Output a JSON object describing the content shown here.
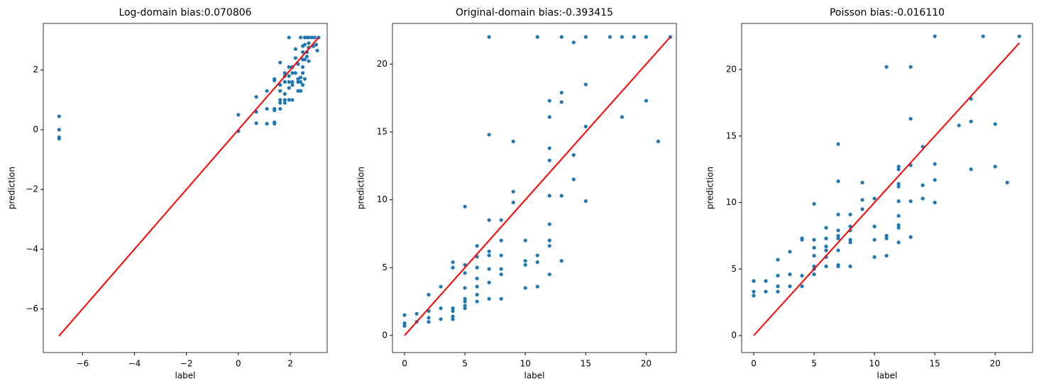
{
  "chart_data": [
    {
      "type": "scatter",
      "title": "Log-domain bias:0.070806",
      "xlabel": "label",
      "ylabel": "prediction",
      "xlim": [
        -7.51,
        3.42
      ],
      "ylim": [
        -7.46,
        3.56
      ],
      "xticks": [
        {
          "value": -6,
          "label": "−6"
        },
        {
          "value": -4,
          "label": "−4"
        },
        {
          "value": -2,
          "label": "−2"
        },
        0,
        2
      ],
      "yticks": [
        {
          "value": -6,
          "label": "−6"
        },
        {
          "value": -4,
          "label": "−4"
        },
        {
          "value": -2,
          "label": "−2"
        },
        0,
        2
      ],
      "series": [
        {
          "kind": "points",
          "color": "#1f77b4",
          "x": [
            -6.9,
            -6.9,
            -6.9,
            -6.9,
            0,
            0,
            0.69,
            0.69,
            0.69,
            1.1,
            1.1,
            1.1,
            1.39,
            1.39,
            1.39,
            1.39,
            1.39,
            1.39,
            1.61,
            1.61,
            1.61,
            1.61,
            1.61,
            1.61,
            1.79,
            1.79,
            1.79,
            1.79,
            1.79,
            1.79,
            1.95,
            1.95,
            1.95,
            1.95,
            1.95,
            1.95,
            2.08,
            2.08,
            2.08,
            2.08,
            2.08,
            2.2,
            2.2,
            2.2,
            2.3,
            2.3,
            2.3,
            2.3,
            2.4,
            2.4,
            2.4,
            2.4,
            2.48,
            2.48,
            2.48,
            2.48,
            2.48,
            2.48,
            2.56,
            2.56,
            2.56,
            2.56,
            2.64,
            2.64,
            2.64,
            2.71,
            2.71,
            2.71,
            2.71,
            2.83,
            2.89,
            2.94,
            3.0,
            3.04,
            3.09
          ],
          "values": [
            0.45,
            0.0,
            -0.25,
            -0.3,
            -0.05,
            0.5,
            0.22,
            0.6,
            1.1,
            0.2,
            0.7,
            1.3,
            0.2,
            0.25,
            0.65,
            0.7,
            1.65,
            1.7,
            0.7,
            0.9,
            1.0,
            1.3,
            1.5,
            2.25,
            0.9,
            1.0,
            1.2,
            1.6,
            1.8,
            1.9,
            1.0,
            1.4,
            1.6,
            1.8,
            2.1,
            3.09,
            1.0,
            1.5,
            1.6,
            1.9,
            2.1,
            1.9,
            2.4,
            2.7,
            1.3,
            1.6,
            1.7,
            2.2,
            1.3,
            1.6,
            1.75,
            3.09,
            1.5,
            1.9,
            2.1,
            2.35,
            2.6,
            2.8,
            1.7,
            2.35,
            2.85,
            3.09,
            2.45,
            2.6,
            3.09,
            2.3,
            2.75,
            2.9,
            3.09,
            3.09,
            2.8,
            3.09,
            2.85,
            2.65,
            3.09
          ]
        },
        {
          "kind": "line",
          "color": "#ff0000",
          "x": [
            -6.91,
            3.09
          ],
          "values": [
            -6.91,
            3.09
          ]
        }
      ]
    },
    {
      "type": "scatter",
      "title": "Original-domain bias:-0.393415",
      "xlabel": "label",
      "ylabel": "prediction",
      "xlim": [
        -1.0,
        22.5
      ],
      "ylim": [
        -1.26,
        23.0
      ],
      "xticks": [
        0,
        5,
        10,
        15,
        20
      ],
      "yticks": [
        0,
        5,
        10,
        15,
        20
      ],
      "series": [
        {
          "kind": "points",
          "color": "#1f77b4",
          "x": [
            0,
            0,
            0,
            1,
            1,
            2,
            2,
            2,
            2,
            3,
            3,
            3,
            4,
            4,
            4,
            4,
            4,
            4,
            5,
            5,
            5,
            5,
            5,
            5,
            5,
            5,
            6,
            6,
            6,
            6,
            6,
            6,
            6,
            7,
            7,
            7,
            7,
            7,
            7,
            7,
            7,
            8,
            8,
            8,
            8,
            8,
            8,
            9,
            9,
            9,
            10,
            10,
            10,
            10,
            11,
            11,
            11,
            11,
            12,
            12,
            12,
            12,
            12,
            12,
            12,
            12,
            12,
            13,
            13,
            13,
            13,
            13,
            14,
            14,
            14,
            15,
            15,
            15,
            15,
            17,
            18,
            18,
            19,
            20,
            20,
            21,
            22
          ],
          "values": [
            0.7,
            0.9,
            1.5,
            1.0,
            1.6,
            1.0,
            1.3,
            1.8,
            3.0,
            1.2,
            2.0,
            3.6,
            1.2,
            1.4,
            1.8,
            2.0,
            5.0,
            5.4,
            2.0,
            2.2,
            2.5,
            2.7,
            3.5,
            4.6,
            5.2,
            9.5,
            2.5,
            3.0,
            3.6,
            4.2,
            5.0,
            5.8,
            6.6,
            2.7,
            3.9,
            4.9,
            5.9,
            6.2,
            8.5,
            14.8,
            22,
            2.7,
            4.5,
            4.9,
            5.9,
            7.0,
            8.5,
            9.8,
            10.6,
            14.3,
            3.5,
            5.2,
            5.5,
            7.0,
            3.6,
            5.4,
            5.9,
            22,
            4.5,
            6.6,
            7.0,
            8.2,
            10.3,
            12.9,
            13.8,
            16.1,
            17.3,
            5.5,
            10.3,
            17.2,
            17.9,
            22,
            11.5,
            13.3,
            21.6,
            9.9,
            15.4,
            18.5,
            22,
            22,
            16.1,
            22,
            22,
            17.3,
            22,
            14.3,
            22
          ]
        },
        {
          "kind": "line",
          "color": "#ff0000",
          "x": [
            0,
            22
          ],
          "values": [
            0,
            22
          ]
        }
      ]
    },
    {
      "type": "scatter",
      "title": "Poisson bias:-0.016110",
      "xlabel": "label",
      "ylabel": "prediction",
      "xlim": [
        -1.0,
        23.1
      ],
      "ylim": [
        -1.28,
        23.47
      ],
      "xticks": [
        0,
        5,
        10,
        15,
        20
      ],
      "yticks": [
        0,
        5,
        10,
        15,
        20
      ],
      "series": [
        {
          "kind": "points",
          "color": "#1f77b4",
          "x": [
            0,
            0,
            0,
            1,
            1,
            2,
            2,
            2,
            2,
            3,
            3,
            3,
            4,
            4,
            4,
            4,
            5,
            5,
            5,
            5,
            5,
            5,
            5,
            6,
            6,
            6,
            6,
            6,
            6,
            7,
            7,
            7,
            7,
            7,
            7,
            7,
            7,
            7,
            8,
            8,
            8,
            8,
            8,
            8,
            9,
            9,
            9,
            10,
            10,
            10,
            10,
            11,
            11,
            11,
            11,
            12,
            12,
            12,
            12,
            12,
            12,
            12,
            12,
            12,
            13,
            13,
            13,
            13,
            13,
            14,
            14,
            14,
            15,
            15,
            15,
            15,
            17,
            18,
            18,
            18,
            19,
            20,
            20,
            21,
            22
          ],
          "values": [
            3.0,
            3.3,
            4.1,
            3.3,
            4.1,
            3.3,
            3.7,
            4.5,
            5.7,
            3.7,
            4.6,
            6.3,
            3.7,
            4.5,
            7.2,
            7.3,
            4.6,
            5.0,
            5.2,
            6.0,
            6.6,
            7.2,
            9.9,
            5.2,
            5.9,
            6.4,
            6.7,
            7.3,
            8.1,
            5.2,
            5.3,
            6.4,
            7.3,
            7.5,
            7.9,
            9.1,
            11.6,
            14.4,
            5.2,
            7.0,
            7.2,
            7.9,
            8.2,
            9.1,
            9.5,
            10.2,
            11.5,
            5.9,
            7.2,
            8.2,
            10.3,
            6.0,
            7.3,
            7.5,
            20.2,
            7.0,
            8.1,
            8.3,
            9.0,
            10.1,
            11.2,
            11.4,
            12.5,
            12.7,
            7.4,
            10.1,
            12.8,
            16.3,
            20.2,
            10.3,
            11.3,
            14.2,
            10.0,
            11.7,
            12.9,
            22.5,
            15.8,
            12.5,
            16.1,
            17.8,
            22.5,
            12.7,
            15.9,
            11.5,
            22.5
          ]
        },
        {
          "kind": "line",
          "color": "#ff0000",
          "x": [
            0,
            22
          ],
          "values": [
            0,
            22
          ]
        }
      ]
    }
  ]
}
